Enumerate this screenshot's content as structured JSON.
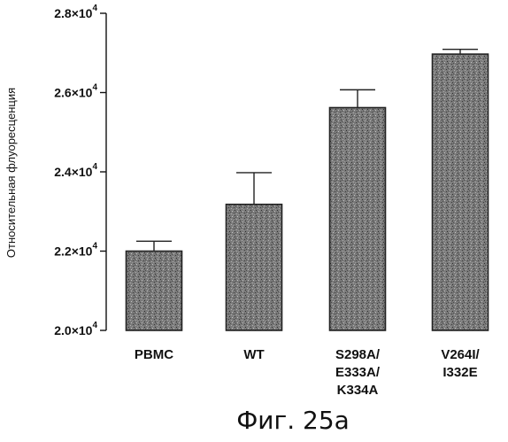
{
  "chart_data": {
    "type": "bar",
    "categories": [
      [
        "PBMC"
      ],
      [
        "WT"
      ],
      [
        "S298A/",
        "E333A/",
        "K334A"
      ],
      [
        "V264I/",
        "I332E"
      ]
    ],
    "values": [
      22000,
      23180,
      25620,
      26970
    ],
    "errors": [
      250,
      800,
      450,
      120
    ],
    "ylim": [
      20000,
      28000
    ],
    "yticks": [
      {
        "value": 20000,
        "mantissa": "2.0",
        "exponent": "4"
      },
      {
        "value": 22000,
        "mantissa": "2.2",
        "exponent": "4"
      },
      {
        "value": 24000,
        "mantissa": "2.4",
        "exponent": "4"
      },
      {
        "value": 26000,
        "mantissa": "2.6",
        "exponent": "4"
      },
      {
        "value": 28000,
        "mantissa": "2.8",
        "exponent": "4"
      }
    ],
    "tick_prefix": "×10",
    "ylabel": "Относительная флуоресценция",
    "xlabel": "",
    "grid": false,
    "bar_color": "#6e6e6e"
  },
  "caption": "Фиг. 25a"
}
